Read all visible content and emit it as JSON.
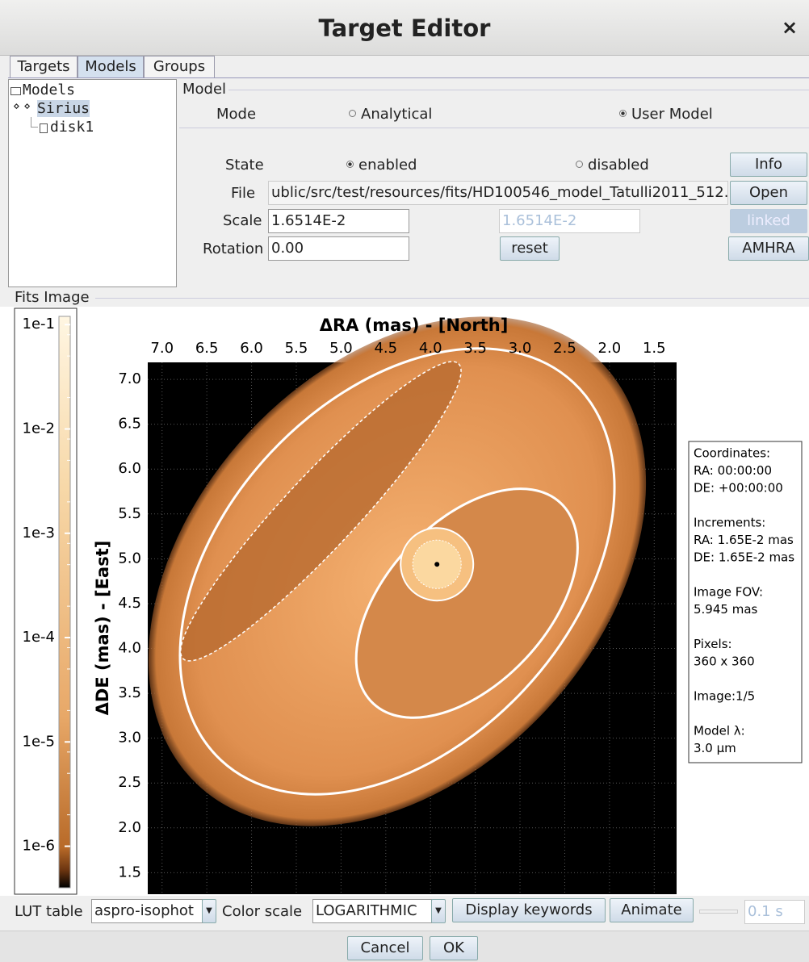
{
  "window": {
    "title": "Target Editor",
    "close": "×"
  },
  "tabs": {
    "items": [
      "Targets",
      "Models",
      "Groups"
    ],
    "active": 1
  },
  "tree": [
    "Models",
    "Sirius",
    "disk1"
  ],
  "model": {
    "title": "Model",
    "mode": {
      "label": "Mode",
      "options": [
        "Analytical",
        "User Model"
      ],
      "selected": 1
    },
    "state": {
      "label": "State",
      "options": [
        "enabled",
        "disabled"
      ],
      "selected": 0
    },
    "file": {
      "label": "File",
      "value": "ublic/src/test/resources/fits/HD100546_model_Tatulli2011_512."
    },
    "scale": {
      "label": "Scale",
      "value": "1.6514E-2",
      "linked": "1.6514E-2"
    },
    "rotation": {
      "label": "Rotation",
      "value": "0.00"
    },
    "buttons": {
      "info": "Info",
      "open": "Open",
      "linked": "linked",
      "reset": "reset",
      "amhra": "AMHRA"
    }
  },
  "fits": {
    "title": "Fits Image",
    "info": [
      [
        "Coordinates:",
        "RA: 00:00:00",
        "DE: +00:00:00"
      ],
      [
        "Increments:",
        "RA: 1.65E-2 mas",
        "DE: 1.65E-2 mas"
      ],
      [
        "Image FOV:",
        "5.945 mas"
      ],
      [
        "Pixels:",
        "360 x 360"
      ],
      [
        "Image:1/5"
      ],
      [
        "Model λ:",
        "3.0 µm"
      ]
    ]
  },
  "chart_data": {
    "type": "image",
    "xlabel": "ΔRA (mas) - [North]",
    "ylabel": "ΔDE (mas) - [East]",
    "xlim": [
      7.16,
      1.25
    ],
    "ylim": [
      1.26,
      7.19
    ],
    "grid": true,
    "xticks": [
      {
        "value": 7,
        "label": "7.0"
      },
      6.5,
      {
        "value": 6,
        "label": "6.0"
      },
      5.5,
      {
        "value": 5,
        "label": "5.0"
      },
      4.5,
      {
        "value": 4,
        "label": "4.0"
      },
      3.5,
      {
        "value": 3,
        "label": "3.0"
      },
      2.5,
      {
        "value": 2,
        "label": "2.0"
      },
      1.5
    ],
    "yticks": [
      {
        "value": 7,
        "label": "7.0"
      },
      6.5,
      {
        "value": 6,
        "label": "6.0"
      },
      5.5,
      {
        "value": 5,
        "label": "5.0"
      },
      4.5,
      {
        "value": 4,
        "label": "4.0"
      },
      3.5,
      {
        "value": 3,
        "label": "3.0"
      },
      2.5,
      {
        "value": 2,
        "label": "2.0"
      },
      1.5
    ],
    "colorbar": {
      "scale": "log",
      "clim": [
        4e-07,
        0.12
      ],
      "ticks": [
        {
          "value": 0.1,
          "label": "1e-1"
        },
        {
          "value": 0.01,
          "label": "1e-2"
        },
        {
          "value": 0.001,
          "label": "1e-3"
        },
        {
          "value": 0.0001,
          "label": "1e-4"
        },
        {
          "value": 1e-05,
          "label": "1e-5"
        },
        {
          "value": 1e-06,
          "label": "1e-6"
        }
      ]
    }
  },
  "toolbar": {
    "lut_label": "LUT table",
    "lut": "aspro-isophot",
    "scale_label": "Color scale",
    "scale": "LOGARITHMIC",
    "keywords": "Display keywords",
    "animate": "Animate",
    "delay": "0.1 s"
  },
  "dialog": {
    "cancel": "Cancel",
    "ok": "OK"
  }
}
